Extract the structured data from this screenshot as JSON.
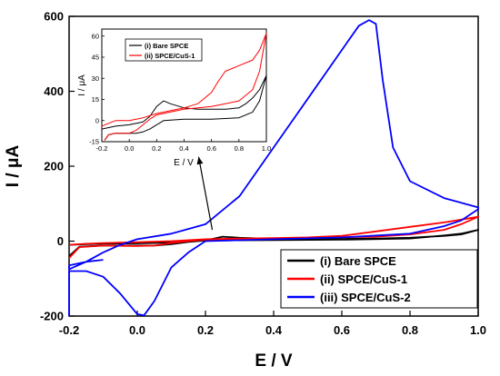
{
  "chart_data": [
    {
      "type": "line",
      "title": "",
      "xlabel": "E / V",
      "ylabel": "I / μA",
      "xlim": [
        -0.2,
        1.0
      ],
      "ylim": [
        -200,
        600
      ],
      "xticks": [
        "-0.2",
        "0.0",
        "0.2",
        "0.4",
        "0.6",
        "0.8",
        "1.0"
      ],
      "yticks": [
        "-200",
        "0",
        "200",
        "400",
        "600"
      ],
      "grid": false,
      "legend": "bottom-right",
      "series": [
        {
          "name": "(i) Bare SPCE",
          "color": "#000000",
          "points": [
            [
              -0.2,
              -10
            ],
            [
              -0.15,
              -8
            ],
            [
              -0.1,
              -7
            ],
            [
              0.0,
              -6
            ],
            [
              0.1,
              -4
            ],
            [
              0.2,
              2
            ],
            [
              0.25,
              12
            ],
            [
              0.3,
              9
            ],
            [
              0.4,
              6
            ],
            [
              0.5,
              6
            ],
            [
              0.6,
              6
            ],
            [
              0.7,
              7
            ],
            [
              0.8,
              9
            ],
            [
              0.9,
              14
            ],
            [
              0.95,
              18
            ],
            [
              1.0,
              30
            ],
            [
              0.95,
              20
            ],
            [
              0.9,
              15
            ],
            [
              0.8,
              7
            ],
            [
              0.6,
              4
            ],
            [
              0.4,
              3
            ],
            [
              0.2,
              2
            ],
            [
              0.15,
              -2
            ],
            [
              0.1,
              -8
            ],
            [
              0.05,
              -12
            ],
            [
              0.0,
              -12
            ],
            [
              -0.1,
              -12
            ],
            [
              -0.17,
              -15
            ],
            [
              -0.2,
              -40
            ]
          ]
        },
        {
          "name": "(ii) SPCE/CuS-1",
          "color": "#ff0000",
          "points": [
            [
              -0.2,
              -10
            ],
            [
              -0.15,
              -7
            ],
            [
              -0.1,
              -5
            ],
            [
              0.0,
              -3
            ],
            [
              0.1,
              0
            ],
            [
              0.2,
              5
            ],
            [
              0.3,
              7
            ],
            [
              0.4,
              8
            ],
            [
              0.5,
              10
            ],
            [
              0.6,
              14
            ],
            [
              0.7,
              26
            ],
            [
              0.8,
              38
            ],
            [
              0.9,
              50
            ],
            [
              1.0,
              65
            ],
            [
              0.95,
              45
            ],
            [
              0.9,
              30
            ],
            [
              0.8,
              18
            ],
            [
              0.7,
              12
            ],
            [
              0.5,
              9
            ],
            [
              0.4,
              8
            ],
            [
              0.3,
              6
            ],
            [
              0.2,
              4
            ],
            [
              0.15,
              0
            ],
            [
              0.1,
              -5
            ],
            [
              0.05,
              -12
            ],
            [
              0.0,
              -13
            ],
            [
              -0.1,
              -12
            ],
            [
              -0.17,
              -16
            ],
            [
              -0.2,
              -45
            ]
          ]
        },
        {
          "name": "(iii) SPCE/CuS-2",
          "color": "#0000ff",
          "points": [
            [
              -0.1,
              -50
            ],
            [
              -0.15,
              -55
            ],
            [
              -0.2,
              -75
            ],
            [
              -0.2,
              -65
            ],
            [
              -0.15,
              -55
            ],
            [
              -0.1,
              -30
            ],
            [
              -0.05,
              -10
            ],
            [
              0.0,
              5
            ],
            [
              0.1,
              20
            ],
            [
              0.2,
              45
            ],
            [
              0.3,
              120
            ],
            [
              0.4,
              250
            ],
            [
              0.5,
              380
            ],
            [
              0.6,
              510
            ],
            [
              0.65,
              575
            ],
            [
              0.68,
              590
            ],
            [
              0.7,
              580
            ],
            [
              0.72,
              430
            ],
            [
              0.75,
              250
            ],
            [
              0.8,
              160
            ],
            [
              0.9,
              115
            ],
            [
              1.0,
              90
            ],
            [
              1.0,
              85
            ],
            [
              0.95,
              55
            ],
            [
              0.9,
              40
            ],
            [
              0.8,
              20
            ],
            [
              0.6,
              10
            ],
            [
              0.4,
              5
            ],
            [
              0.2,
              0
            ],
            [
              0.15,
              -30
            ],
            [
              0.1,
              -70
            ],
            [
              0.05,
              -160
            ],
            [
              0.02,
              -198
            ],
            [
              0.0,
              -195
            ],
            [
              -0.05,
              -140
            ],
            [
              -0.1,
              -95
            ],
            [
              -0.15,
              -80
            ],
            [
              -0.2,
              -80
            ],
            [
              -0.2,
              -200
            ]
          ]
        }
      ],
      "annotations": [
        {
          "type": "arrow",
          "from": [
            0.22,
            30
          ],
          "to": [
            0.18,
            225
          ]
        }
      ]
    },
    {
      "type": "line",
      "title": "",
      "xlabel": "E / V",
      "ylabel": "I / μA",
      "xlim": [
        -0.2,
        1.0
      ],
      "ylim": [
        -15,
        65
      ],
      "xticks": [
        "-0.2",
        "0.0",
        "0.2",
        "0.4",
        "0.6",
        "0.8",
        "1.0"
      ],
      "yticks": [
        "-15",
        "0",
        "15",
        "30",
        "45",
        "60"
      ],
      "grid": false,
      "legend": "top-left",
      "series": [
        {
          "name": "(i) Bare SPCE",
          "color": "#000000",
          "points": [
            [
              -0.2,
              -6
            ],
            [
              -0.15,
              -5
            ],
            [
              -0.1,
              -4
            ],
            [
              0.0,
              -3
            ],
            [
              0.1,
              -1
            ],
            [
              0.15,
              3
            ],
            [
              0.2,
              10
            ],
            [
              0.25,
              14
            ],
            [
              0.3,
              12
            ],
            [
              0.4,
              9
            ],
            [
              0.5,
              8
            ],
            [
              0.6,
              8
            ],
            [
              0.7,
              8
            ],
            [
              0.8,
              9
            ],
            [
              0.85,
              12
            ],
            [
              0.9,
              16
            ],
            [
              0.95,
              22
            ],
            [
              1.0,
              32
            ],
            [
              0.95,
              14
            ],
            [
              0.9,
              6
            ],
            [
              0.8,
              2
            ],
            [
              0.6,
              1
            ],
            [
              0.4,
              1
            ],
            [
              0.25,
              0
            ],
            [
              0.2,
              -3
            ],
            [
              0.15,
              -6
            ],
            [
              0.1,
              -8
            ],
            [
              0.05,
              -9
            ],
            [
              0.0,
              -9
            ],
            [
              -0.1,
              -9
            ],
            [
              -0.15,
              -10
            ],
            [
              -0.18,
              -14
            ]
          ]
        },
        {
          "name": "(ii) SPCE/CuS-1",
          "color": "#ff0000",
          "points": [
            [
              -0.2,
              -4
            ],
            [
              -0.15,
              -2
            ],
            [
              -0.1,
              0
            ],
            [
              0.0,
              0
            ],
            [
              0.1,
              2
            ],
            [
              0.2,
              5
            ],
            [
              0.3,
              7
            ],
            [
              0.4,
              9
            ],
            [
              0.5,
              12
            ],
            [
              0.6,
              20
            ],
            [
              0.65,
              28
            ],
            [
              0.7,
              35
            ],
            [
              0.8,
              39
            ],
            [
              0.9,
              43
            ],
            [
              0.95,
              50
            ],
            [
              1.0,
              62
            ],
            [
              0.95,
              35
            ],
            [
              0.9,
              22
            ],
            [
              0.8,
              14
            ],
            [
              0.7,
              12
            ],
            [
              0.6,
              10
            ],
            [
              0.4,
              8
            ],
            [
              0.3,
              6
            ],
            [
              0.2,
              4
            ],
            [
              0.15,
              1
            ],
            [
              0.1,
              -3
            ],
            [
              0.05,
              -7
            ],
            [
              0.0,
              -9
            ],
            [
              -0.1,
              -9
            ],
            [
              -0.15,
              -10
            ],
            [
              -0.18,
              -14
            ]
          ]
        }
      ]
    }
  ]
}
